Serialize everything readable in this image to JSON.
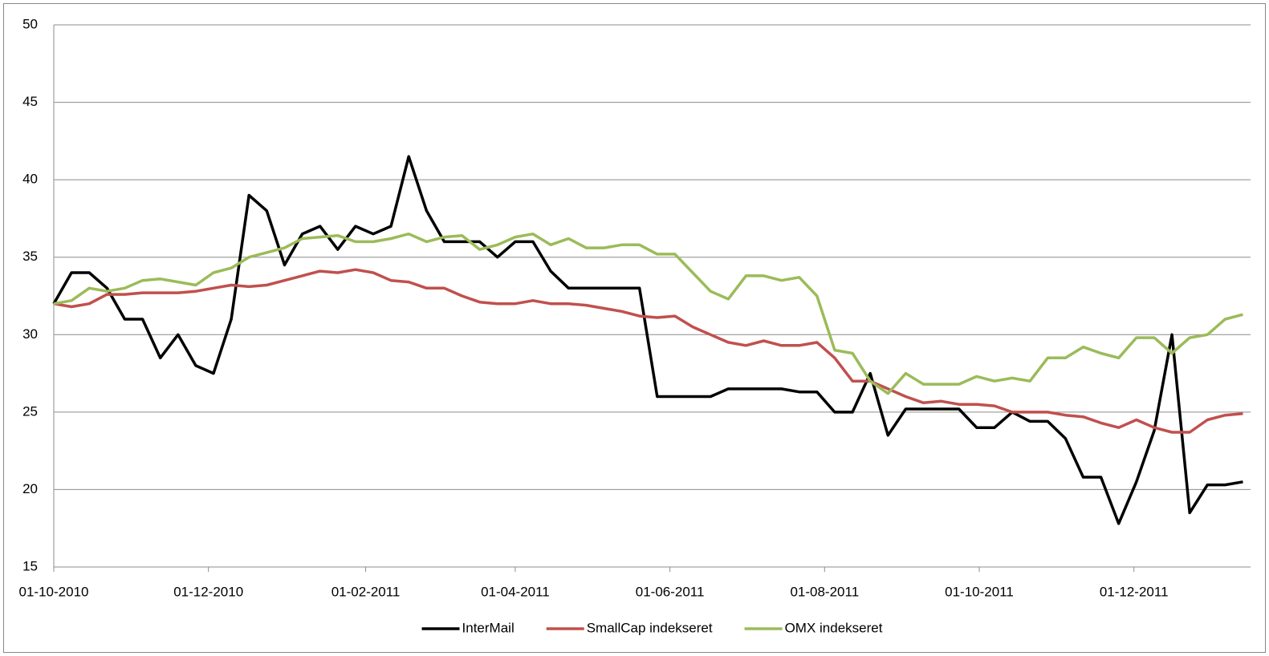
{
  "chart_data": {
    "type": "line",
    "x": [
      "01-10-2010",
      "08-10-2010",
      "15-10-2010",
      "22-10-2010",
      "29-10-2010",
      "05-11-2010",
      "12-11-2010",
      "19-11-2010",
      "26-11-2010",
      "03-12-2010",
      "10-12-2010",
      "17-12-2010",
      "24-12-2010",
      "31-12-2010",
      "07-01-2011",
      "14-01-2011",
      "21-01-2011",
      "28-01-2011",
      "04-02-2011",
      "11-02-2011",
      "18-02-2011",
      "25-02-2011",
      "04-03-2011",
      "11-03-2011",
      "18-03-2011",
      "25-03-2011",
      "01-04-2011",
      "08-04-2011",
      "15-04-2011",
      "22-04-2011",
      "29-04-2011",
      "06-05-2011",
      "13-05-2011",
      "20-05-2011",
      "27-05-2011",
      "03-06-2011",
      "10-06-2011",
      "17-06-2011",
      "24-06-2011",
      "01-07-2011",
      "08-07-2011",
      "15-07-2011",
      "22-07-2011",
      "29-07-2011",
      "05-08-2011",
      "12-08-2011",
      "19-08-2011",
      "26-08-2011",
      "02-09-2011",
      "09-09-2011",
      "16-09-2011",
      "23-09-2011",
      "30-09-2011",
      "07-10-2011",
      "14-10-2011",
      "21-10-2011",
      "28-10-2011",
      "04-11-2011",
      "11-11-2011",
      "18-11-2011",
      "25-11-2011",
      "02-12-2011",
      "09-12-2011",
      "16-12-2011",
      "23-12-2011",
      "30-12-2011",
      "06-01-2012",
      "13-01-2012"
    ],
    "series": [
      {
        "name": "InterMail",
        "color": "#000000",
        "values": [
          32,
          34,
          34,
          33,
          31,
          31,
          28.5,
          30,
          28,
          27.5,
          31,
          39,
          38,
          34.5,
          36.5,
          37,
          35.5,
          37,
          36.5,
          37,
          41.5,
          38,
          36,
          36,
          36,
          35,
          36,
          36,
          34.1,
          33,
          33,
          33,
          33,
          33,
          26,
          26,
          26,
          26,
          26.5,
          26.5,
          26.5,
          26.5,
          26.3,
          26.3,
          25,
          25,
          27.5,
          23.5,
          25.2,
          25.2,
          25.2,
          25.2,
          24,
          24,
          25,
          24.4,
          24.4,
          23.3,
          20.8,
          20.8,
          17.8,
          20.5,
          23.8,
          30,
          18.5,
          20.3,
          20.3,
          20.5
        ]
      },
      {
        "name": "SmallCap indekseret",
        "color": "#c0504d",
        "values": [
          32,
          31.8,
          32,
          32.6,
          32.6,
          32.7,
          32.7,
          32.7,
          32.8,
          33,
          33.2,
          33.1,
          33.2,
          33.5,
          33.8,
          34.1,
          34,
          34.2,
          34,
          33.5,
          33.4,
          33,
          33,
          32.5,
          32.1,
          32,
          32,
          32.2,
          32,
          32,
          31.9,
          31.7,
          31.5,
          31.2,
          31.1,
          31.2,
          30.5,
          30,
          29.5,
          29.3,
          29.6,
          29.3,
          29.3,
          29.5,
          28.5,
          27,
          27,
          26.5,
          26,
          25.6,
          25.7,
          25.5,
          25.5,
          25.4,
          25,
          25,
          25,
          24.8,
          24.7,
          24.3,
          24,
          24.5,
          24,
          23.7,
          23.7,
          24.5,
          24.8,
          24.9
        ]
      },
      {
        "name": "OMX indekseret",
        "color": "#9bbb59",
        "values": [
          32,
          32.2,
          33,
          32.8,
          33,
          33.5,
          33.6,
          33.4,
          33.2,
          34,
          34.3,
          35,
          35.3,
          35.6,
          36.2,
          36.3,
          36.4,
          36,
          36,
          36.2,
          36.5,
          36,
          36.3,
          36.4,
          35.5,
          35.8,
          36.3,
          36.5,
          35.8,
          36.2,
          35.6,
          35.6,
          35.8,
          35.8,
          35.2,
          35.2,
          34,
          32.8,
          32.3,
          33.8,
          33.8,
          33.5,
          33.7,
          32.5,
          29,
          28.8,
          27,
          26.2,
          27.5,
          26.8,
          26.8,
          26.8,
          27.3,
          27,
          27.2,
          27,
          28.5,
          28.5,
          29.2,
          28.8,
          28.5,
          29.8,
          29.8,
          28.8,
          29.8,
          30,
          31,
          31.3
        ]
      }
    ],
    "xlim": [
      "01-10-2010",
      "16-01-2012"
    ],
    "xticks": [
      "01-10-2010",
      "01-12-2010",
      "01-02-2011",
      "01-04-2011",
      "01-06-2011",
      "01-08-2011",
      "01-10-2011",
      "01-12-2011"
    ],
    "ylim": [
      15,
      50
    ],
    "yticks": [
      15,
      20,
      25,
      30,
      35,
      40,
      45,
      50
    ],
    "grid": true,
    "legend": "bottom"
  }
}
